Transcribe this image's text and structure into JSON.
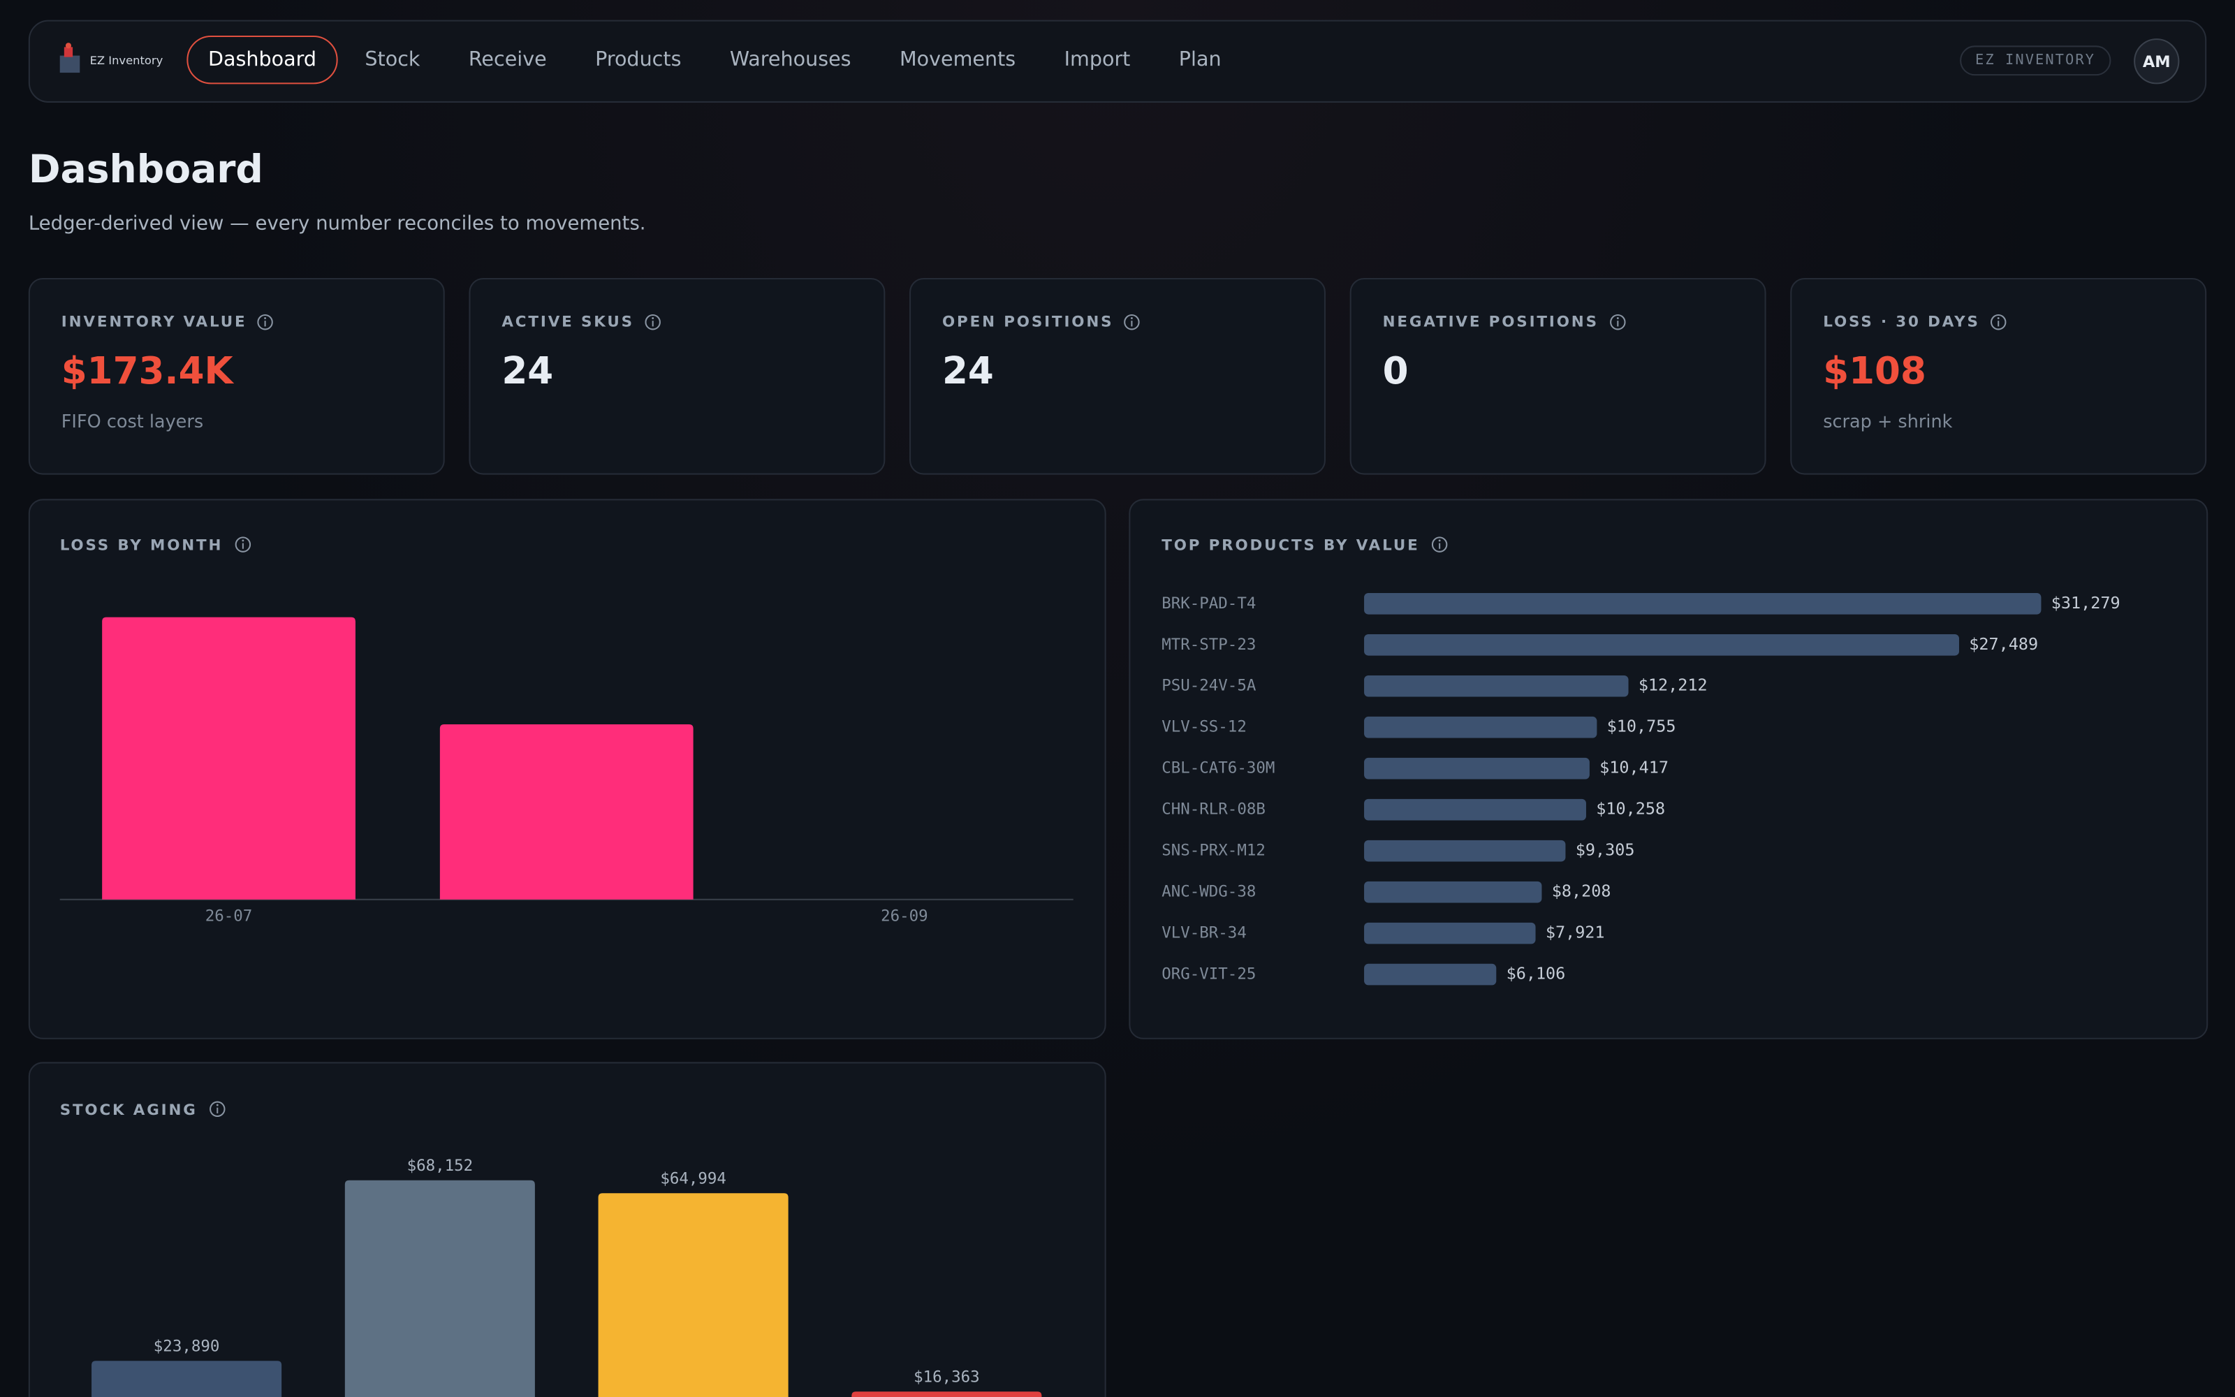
{
  "nav": {
    "brand": "EZ Inventory",
    "tabs": [
      "Dashboard",
      "Stock",
      "Receive",
      "Products",
      "Warehouses",
      "Movements",
      "Import",
      "Plan"
    ],
    "badge": "EZ INVENTORY",
    "avatar": "AM"
  },
  "header": {
    "title": "Dashboard",
    "subtitle": "Ledger-derived view — every number reconciles to movements."
  },
  "kpis": [
    {
      "label": "INVENTORY VALUE",
      "value": "$173.4K",
      "note": "FIFO cost layers"
    },
    {
      "label": "ACTIVE SKUS",
      "value": 24
    },
    {
      "label": "OPEN POSITIONS",
      "value": 24
    },
    {
      "label": "NEGATIVE POSITIONS",
      "value": 0
    },
    {
      "label": "LOSS · 30 DAYS",
      "value": "$108",
      "note": "scrap + shrink"
    }
  ],
  "chart_data": [
    {
      "type": "bar",
      "title": "LOSS BY MONTH",
      "categories": [
        "26-07",
        null,
        "26-09"
      ],
      "values": [
        174,
        108,
        0
      ],
      "color": "#ff2d7a"
    },
    {
      "type": "hbar",
      "title": "TOP PRODUCTS BY VALUE",
      "categories": [
        "BRK-PAD-T4",
        "MTR-STP-23",
        "PSU-24V-5A",
        "VLV-SS-12",
        "CBL-CAT6-30M",
        "CHN-RLR-08B",
        "SNS-PRX-M12",
        "ANC-WDG-38",
        "VLV-BR-34",
        "ORG-VIT-25"
      ],
      "values": [
        31279,
        27489,
        12212,
        10755,
        10417,
        10258,
        9305,
        8208,
        7921,
        6106
      ],
      "value_labels": [
        "$31,279",
        "$27,489",
        "$12,212",
        "$10,755",
        "$10,417",
        "$10,258",
        "$9,305",
        "$8,208",
        "$7,921",
        "$6,106"
      ],
      "color": "#3d5270"
    },
    {
      "type": "bar",
      "title": "STOCK AGING",
      "values": [
        23890,
        68152,
        64994,
        16363
      ],
      "value_labels": [
        "$23,890",
        "$68,152",
        "$64,994",
        "$16,363"
      ],
      "colors": [
        "#3d5270",
        "#5e7184",
        "#f5b431",
        "#e0403f"
      ]
    }
  ]
}
